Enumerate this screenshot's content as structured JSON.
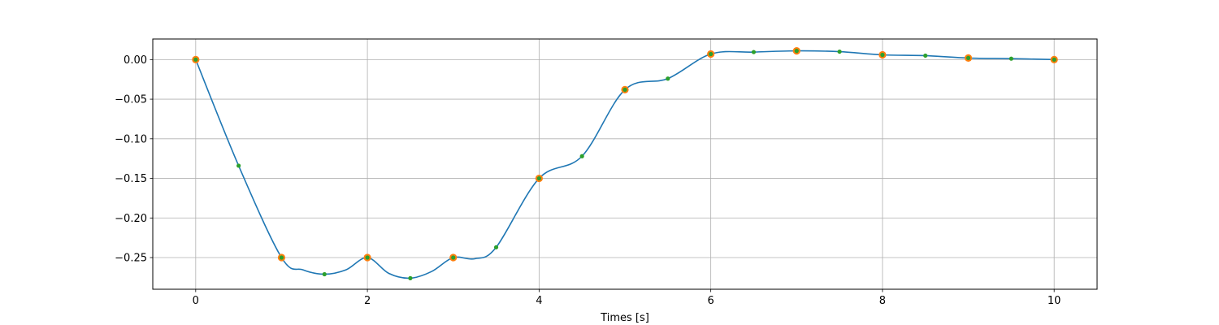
{
  "chart_data": {
    "type": "line",
    "title": "",
    "xlabel": "Times [s]",
    "ylabel": "",
    "xlim": [
      -0.5,
      10.5
    ],
    "ylim": [
      -0.29,
      0.026
    ],
    "grid": true,
    "xticks": [
      0,
      2,
      4,
      6,
      8,
      10
    ],
    "xtick_labels": [
      "0",
      "2",
      "4",
      "6",
      "8",
      "10"
    ],
    "yticks": [
      0.0,
      -0.05,
      -0.1,
      -0.15,
      -0.2,
      -0.25
    ],
    "ytick_labels": [
      "0.00",
      "−0.05",
      "−0.10",
      "−0.15",
      "−0.20",
      "−0.25"
    ],
    "series": [
      {
        "role": "curve",
        "color": "#1f77b4",
        "x": [
          0,
          0.5,
          1,
          1.25,
          1.5,
          1.75,
          2,
          2.25,
          2.5,
          2.75,
          3,
          3.25,
          3.5,
          4,
          4.5,
          5,
          5.5,
          6,
          6.5,
          7,
          7.5,
          8,
          8.5,
          9,
          9.5,
          10
        ],
        "y": [
          0.0,
          -0.134,
          -0.25,
          -0.2655,
          -0.271,
          -0.2655,
          -0.25,
          -0.27,
          -0.276,
          -0.2675,
          -0.25,
          -0.2515,
          -0.237,
          -0.15,
          -0.122,
          -0.038,
          -0.024,
          0.007,
          0.0095,
          0.011,
          0.01,
          0.006,
          0.005,
          0.002,
          0.0012,
          0.0
        ]
      },
      {
        "role": "knots",
        "color": "#ff7f0e",
        "x": [
          0,
          1,
          2,
          3,
          4,
          5,
          6,
          7,
          8,
          9,
          10
        ],
        "y": [
          0.0,
          -0.25,
          -0.25,
          -0.25,
          -0.15,
          -0.038,
          0.007,
          0.011,
          0.006,
          0.002,
          0.0
        ]
      },
      {
        "role": "samples",
        "color": "#2ca02c",
        "x": [
          0,
          0.5,
          1,
          1.5,
          2,
          2.5,
          3,
          3.5,
          4,
          4.5,
          5,
          5.5,
          6,
          6.5,
          7,
          7.5,
          8,
          8.5,
          9,
          9.5,
          10
        ],
        "y": [
          0.0,
          -0.134,
          -0.25,
          -0.271,
          -0.25,
          -0.276,
          -0.25,
          -0.237,
          -0.15,
          -0.122,
          -0.038,
          -0.024,
          0.007,
          0.0095,
          0.011,
          0.01,
          0.006,
          0.005,
          0.002,
          0.0012,
          0.0
        ]
      }
    ]
  }
}
